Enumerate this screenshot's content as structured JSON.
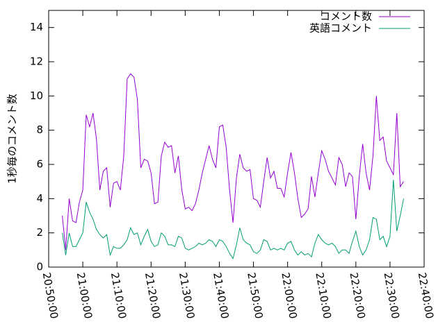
{
  "chart_data": {
    "type": "line",
    "ylabel": "1秒毎のコメント数",
    "legend": "top right",
    "grid": false,
    "xlim": [
      "20:50:00",
      "22:40:00"
    ],
    "xticks": [
      "20:50:00",
      "21:00:00",
      "21:10:00",
      "21:20:00",
      "21:30:00",
      "21:40:00",
      "21:50:00",
      "22:00:00",
      "22:10:00",
      "22:20:00",
      "22:30:00",
      "22:40:00"
    ],
    "ylim": [
      0,
      15
    ],
    "yticks": [
      0,
      2,
      4,
      6,
      8,
      10,
      12,
      14
    ],
    "x": [
      "20:54:00",
      "20:55:00",
      "20:56:00",
      "20:57:00",
      "20:58:00",
      "20:59:00",
      "21:00:00",
      "21:01:00",
      "21:02:00",
      "21:03:00",
      "21:04:00",
      "21:05:00",
      "21:06:00",
      "21:07:00",
      "21:08:00",
      "21:09:00",
      "21:10:00",
      "21:11:00",
      "21:12:00",
      "21:13:00",
      "21:14:00",
      "21:15:00",
      "21:16:00",
      "21:17:00",
      "21:18:00",
      "21:19:00",
      "21:20:00",
      "21:21:00",
      "21:22:00",
      "21:23:00",
      "21:24:00",
      "21:25:00",
      "21:26:00",
      "21:27:00",
      "21:28:00",
      "21:29:00",
      "21:30:00",
      "21:31:00",
      "21:32:00",
      "21:33:00",
      "21:34:00",
      "21:35:00",
      "21:36:00",
      "21:37:00",
      "21:38:00",
      "21:39:00",
      "21:40:00",
      "21:41:00",
      "21:42:00",
      "21:43:00",
      "21:44:00",
      "21:45:00",
      "21:46:00",
      "21:47:00",
      "21:48:00",
      "21:49:00",
      "21:50:00",
      "21:51:00",
      "21:52:00",
      "21:53:00",
      "21:54:00",
      "21:55:00",
      "21:56:00",
      "21:57:00",
      "21:58:00",
      "21:59:00",
      "22:00:00",
      "22:01:00",
      "22:02:00",
      "22:03:00",
      "22:04:00",
      "22:05:00",
      "22:06:00",
      "22:07:00",
      "22:08:00",
      "22:09:00",
      "22:10:00",
      "22:11:00",
      "22:12:00",
      "22:13:00",
      "22:14:00",
      "22:15:00",
      "22:16:00",
      "22:17:00",
      "22:18:00",
      "22:19:00",
      "22:20:00",
      "22:21:00",
      "22:22:00",
      "22:23:00",
      "22:24:00",
      "22:25:00",
      "22:26:00",
      "22:27:00",
      "22:28:00",
      "22:29:00",
      "22:30:00",
      "22:31:00",
      "22:32:00",
      "22:33:00",
      "22:34:00"
    ],
    "series": [
      {
        "name": "コメント数",
        "color": "#9400d3",
        "values": [
          3.0,
          1.0,
          4.0,
          2.7,
          2.6,
          3.8,
          4.5,
          8.9,
          8.2,
          9.0,
          7.5,
          4.5,
          5.6,
          5.8,
          3.5,
          4.9,
          5.0,
          4.5,
          6.5,
          11.0,
          11.3,
          11.1,
          9.8,
          5.8,
          6.3,
          6.2,
          5.5,
          3.7,
          3.8,
          6.5,
          7.3,
          7.0,
          7.1,
          5.5,
          6.5,
          4.5,
          3.4,
          3.5,
          3.3,
          3.7,
          4.5,
          5.5,
          6.3,
          7.1,
          6.3,
          5.8,
          8.2,
          8.3,
          7.0,
          4.5,
          2.6,
          5.2,
          6.6,
          5.8,
          5.6,
          5.7,
          4.0,
          3.9,
          3.5,
          5.0,
          6.4,
          5.2,
          5.6,
          4.6,
          4.6,
          4.1,
          5.5,
          6.7,
          5.5,
          4.0,
          2.9,
          3.1,
          3.4,
          5.3,
          4.1,
          5.5,
          6.8,
          6.3,
          5.6,
          5.2,
          4.8,
          6.4,
          6.0,
          4.7,
          5.5,
          5.3,
          2.8,
          5.3,
          7.2,
          5.5,
          4.5,
          6.5,
          10.0,
          7.4,
          7.6,
          6.2,
          5.8,
          5.4,
          9.0,
          4.7,
          5.0
        ]
      },
      {
        "name": "英語コメント",
        "color": "#009e73",
        "values": [
          2.0,
          0.7,
          2.0,
          1.2,
          1.2,
          1.6,
          2.0,
          3.8,
          3.2,
          2.8,
          2.2,
          1.9,
          1.7,
          1.9,
          0.7,
          1.2,
          1.1,
          1.1,
          1.3,
          1.6,
          2.3,
          1.9,
          2.0,
          1.3,
          1.8,
          2.2,
          1.5,
          1.2,
          1.3,
          2.0,
          1.8,
          1.3,
          1.3,
          1.2,
          1.8,
          1.7,
          1.1,
          1.0,
          1.1,
          1.2,
          1.4,
          1.3,
          1.4,
          1.6,
          1.5,
          1.2,
          1.6,
          1.5,
          1.2,
          0.8,
          0.5,
          1.3,
          2.3,
          1.6,
          1.4,
          1.3,
          0.9,
          0.8,
          1.0,
          1.6,
          1.5,
          1.0,
          1.1,
          1.0,
          1.1,
          1.0,
          1.4,
          1.5,
          1.0,
          0.7,
          0.9,
          0.7,
          0.8,
          0.6,
          1.4,
          1.9,
          1.6,
          1.4,
          1.3,
          1.4,
          1.2,
          0.8,
          1.0,
          1.0,
          0.8,
          1.5,
          2.1,
          1.2,
          0.7,
          1.0,
          1.6,
          2.9,
          2.8,
          1.6,
          1.8,
          1.2,
          1.8,
          5.1,
          2.1,
          3.0,
          4.0
        ]
      }
    ]
  }
}
